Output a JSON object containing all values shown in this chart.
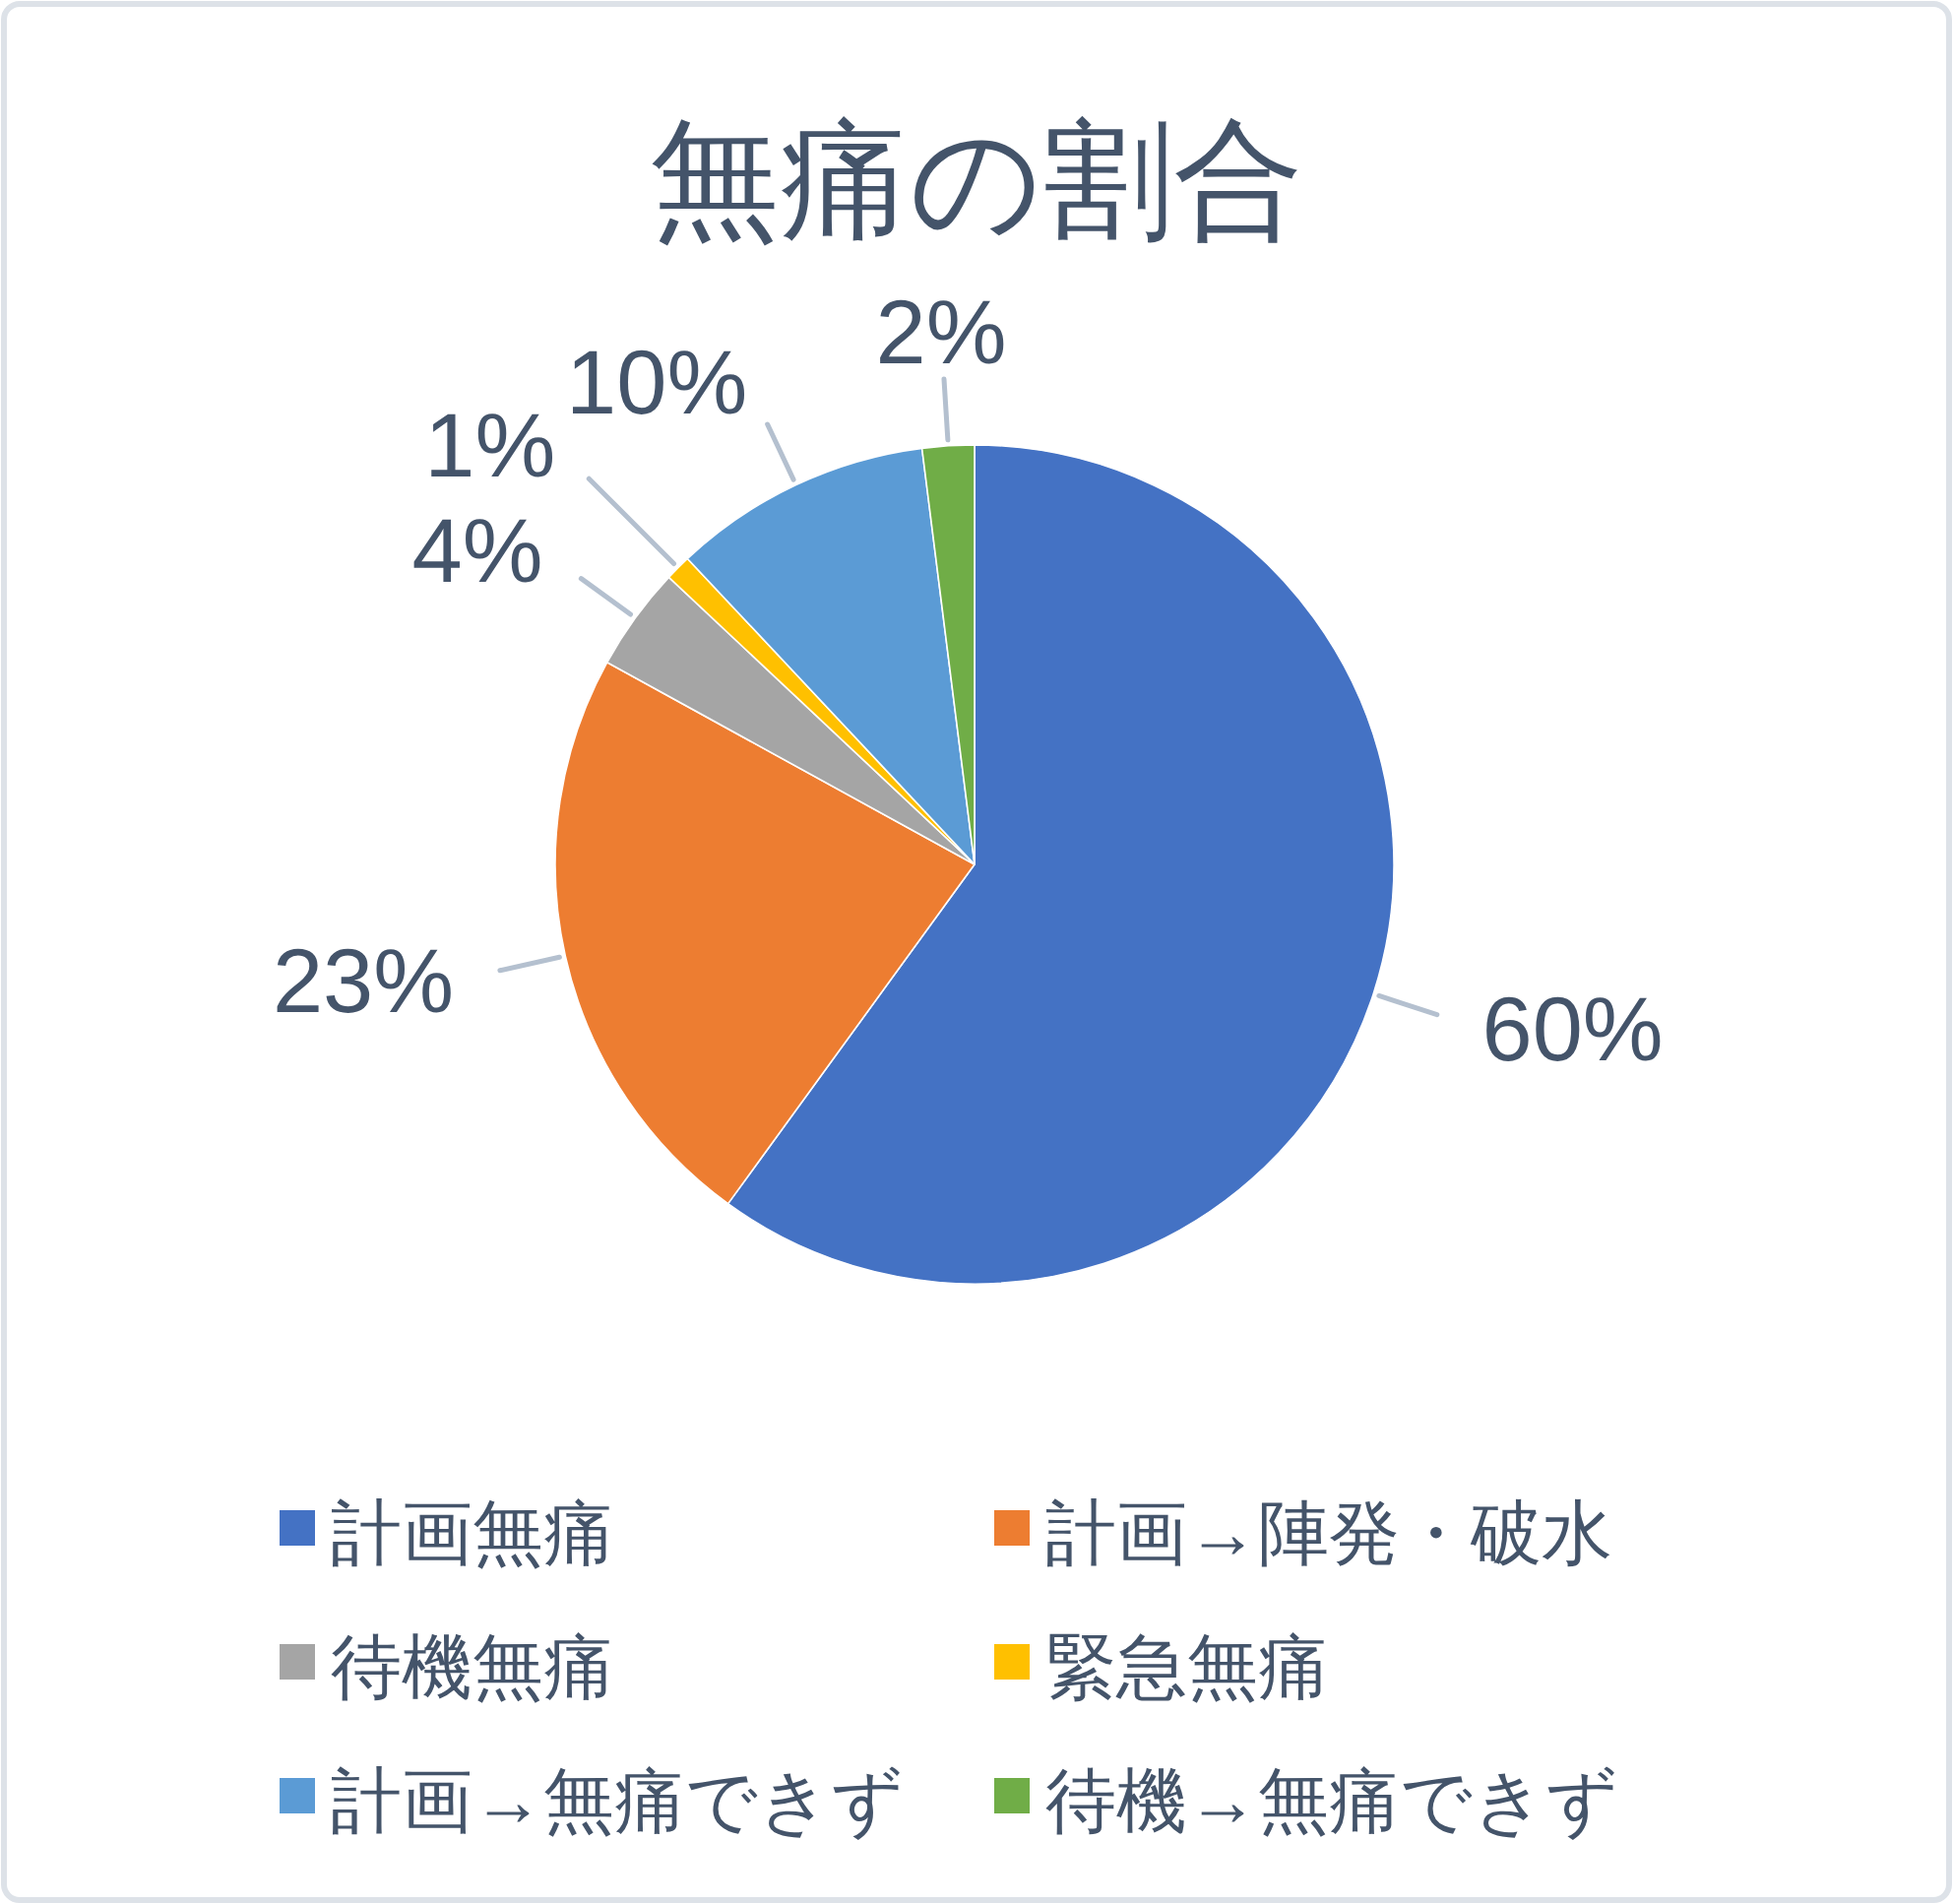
{
  "chart_data": {
    "type": "pie",
    "title": "無痛の割合",
    "categories": [
      "計画無痛",
      "計画→陣発・破水",
      "待機無痛",
      "緊急無痛",
      "計画→無痛できず",
      "待機→無痛できず"
    ],
    "values": [
      60,
      23,
      4,
      1,
      10,
      2
    ],
    "value_labels": [
      "60%",
      "23%",
      "4%",
      "1%",
      "10%",
      "2%"
    ],
    "colors": [
      "#4472c4",
      "#ed7d31",
      "#a5a5a5",
      "#ffc000",
      "#5b9bd5",
      "#70ad47"
    ],
    "legend": "bottom"
  }
}
